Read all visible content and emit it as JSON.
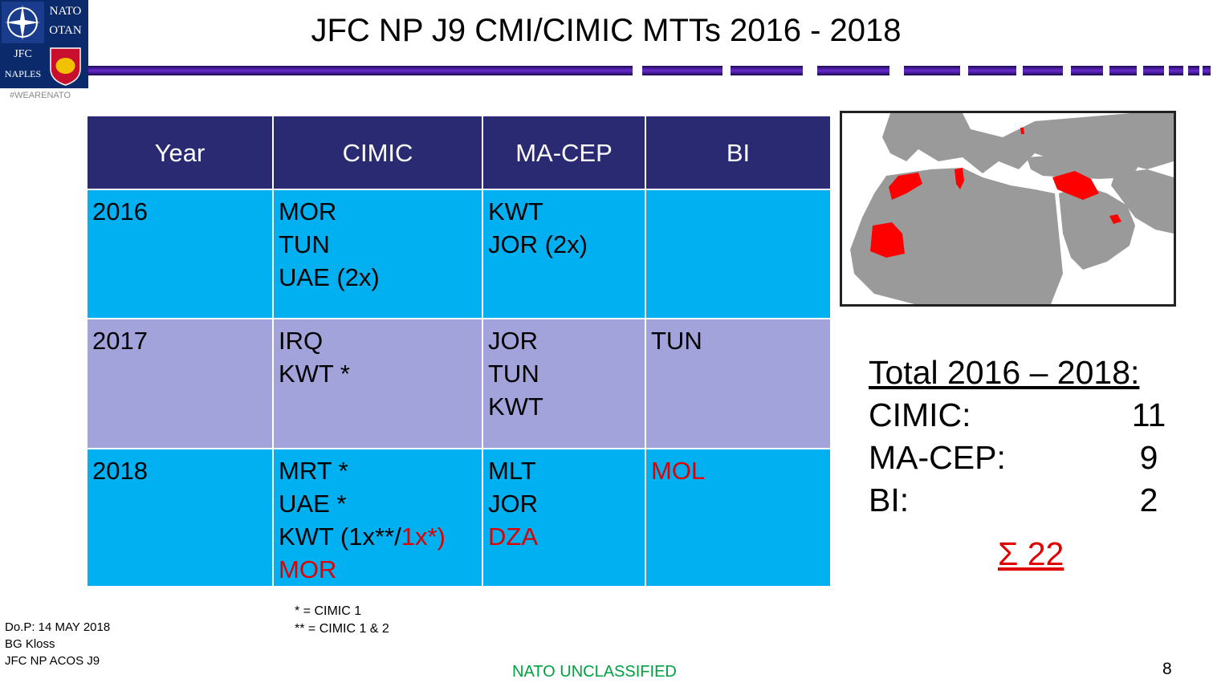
{
  "logo": {
    "nato_text": "NATO",
    "otan_text": "OTAN",
    "jfc_text": "JFC",
    "naples_text": "NAPLES"
  },
  "hashtag": "#WEARENATO",
  "title": "JFC NP J9 CMI/CIMIC MTTs 2016 - 2018",
  "table": {
    "headers": [
      "Year",
      "CIMIC",
      "MA-CEP",
      "BI"
    ],
    "rows": [
      {
        "year": "2016",
        "cimic": [
          {
            "t": "MOR"
          },
          {
            "t": "TUN"
          },
          {
            "t": "UAE (2x)"
          }
        ],
        "macep": [
          {
            "t": "KWT"
          },
          {
            "t": "JOR (2x)"
          }
        ],
        "bi": []
      },
      {
        "year": "2017",
        "cimic": [
          {
            "t": "IRQ"
          },
          {
            "t": "KWT *"
          }
        ],
        "macep": [
          {
            "t": "JOR"
          },
          {
            "t": "TUN"
          },
          {
            "t": "KWT"
          }
        ],
        "bi": [
          {
            "t": "TUN"
          }
        ]
      },
      {
        "year": "2018",
        "cimic": [
          {
            "t": "MRT *"
          },
          {
            "t": "UAE *"
          },
          {
            "t": "KWT (1x**/",
            "t2": "1x*)"
          },
          {
            "t": "MOR",
            "red": true
          }
        ],
        "macep": [
          {
            "t": "MLT"
          },
          {
            "t": "JOR"
          },
          {
            "t": "DZA",
            "red": true
          }
        ],
        "bi": [
          {
            "t": "MOL",
            "red": true
          }
        ]
      }
    ]
  },
  "totals": {
    "title": "Total 2016 – 2018:",
    "items": [
      {
        "label": "CIMIC:",
        "value": "11"
      },
      {
        "label": "MA-CEP:",
        "value": "9"
      },
      {
        "label": "BI:",
        "value": "2"
      }
    ],
    "sum": "Σ 22"
  },
  "notes": [
    "* = CIMIC 1",
    "** = CIMIC 1 & 2"
  ],
  "dop": [
    "Do.P:  14 MAY 2018",
    "BG Kloss",
    "JFC NP ACOS J9"
  ],
  "classification": "NATO UNCLASSIFIED",
  "page_number": "8",
  "colors": {
    "header_bg": "#2a2a72",
    "row_blue": "#00b0f0",
    "row_lavender": "#a3a3dc",
    "highlight_red": "#e00000",
    "classification_green": "#00a040"
  }
}
